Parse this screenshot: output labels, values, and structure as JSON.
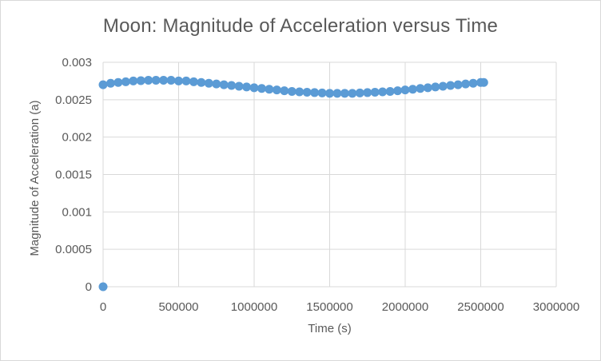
{
  "chart_data": {
    "type": "scatter",
    "title": "Moon: Magnitude of Acceleration versus Time",
    "xlabel": "Time (s)",
    "ylabel": "Magnitude of Acceleration (a)",
    "xlim": [
      0,
      3000000
    ],
    "ylim": [
      0,
      0.003
    ],
    "x_ticks": [
      "0",
      "500000",
      "1000000",
      "1500000",
      "2000000",
      "2500000",
      "3000000"
    ],
    "y_ticks": [
      "0",
      "0.0005",
      "0.001",
      "0.0015",
      "0.002",
      "0.0025",
      "0.003"
    ],
    "grid": true,
    "legend": "none",
    "marker_color": "#5b9bd5",
    "series": [
      {
        "points": [
          [
            0,
            0
          ],
          [
            0,
            0.0027
          ],
          [
            50000,
            0.00272
          ],
          [
            100000,
            0.00273
          ],
          [
            150000,
            0.00274
          ],
          [
            200000,
            0.00275
          ],
          [
            250000,
            0.002755
          ],
          [
            300000,
            0.00276
          ],
          [
            350000,
            0.00276
          ],
          [
            400000,
            0.00276
          ],
          [
            450000,
            0.00276
          ],
          [
            500000,
            0.00275
          ],
          [
            550000,
            0.00275
          ],
          [
            600000,
            0.00274
          ],
          [
            650000,
            0.00273
          ],
          [
            700000,
            0.00272
          ],
          [
            750000,
            0.00271
          ],
          [
            800000,
            0.0027
          ],
          [
            850000,
            0.00269
          ],
          [
            900000,
            0.00268
          ],
          [
            950000,
            0.00267
          ],
          [
            1000000,
            0.00266
          ],
          [
            1050000,
            0.00265
          ],
          [
            1100000,
            0.00264
          ],
          [
            1150000,
            0.00263
          ],
          [
            1200000,
            0.00262
          ],
          [
            1250000,
            0.00261
          ],
          [
            1300000,
            0.002605
          ],
          [
            1350000,
            0.0026
          ],
          [
            1400000,
            0.002595
          ],
          [
            1450000,
            0.00259
          ],
          [
            1500000,
            0.002585
          ],
          [
            1550000,
            0.002585
          ],
          [
            1600000,
            0.002585
          ],
          [
            1650000,
            0.002585
          ],
          [
            1700000,
            0.00259
          ],
          [
            1750000,
            0.002595
          ],
          [
            1800000,
            0.0026
          ],
          [
            1850000,
            0.002605
          ],
          [
            1900000,
            0.00261
          ],
          [
            1950000,
            0.00262
          ],
          [
            2000000,
            0.00263
          ],
          [
            2050000,
            0.00264
          ],
          [
            2100000,
            0.00265
          ],
          [
            2150000,
            0.00266
          ],
          [
            2200000,
            0.00267
          ],
          [
            2250000,
            0.00268
          ],
          [
            2300000,
            0.00269
          ],
          [
            2350000,
            0.0027
          ],
          [
            2400000,
            0.00271
          ],
          [
            2450000,
            0.00272
          ],
          [
            2500000,
            0.00273
          ],
          [
            2520000,
            0.00273
          ]
        ]
      }
    ]
  }
}
